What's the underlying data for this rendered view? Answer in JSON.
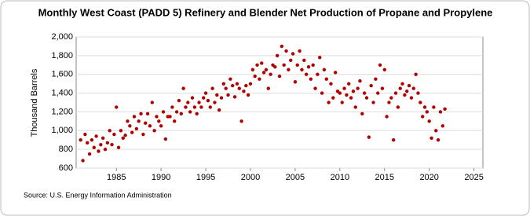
{
  "chart_data": {
    "type": "scatter",
    "title": "Monthly West Coast (PADD 5) Refinery and Blender Net Production of Propane and Propylene",
    "y_label": "Thousand Barrels",
    "source": "Source: U.S. Energy Information Administration",
    "color": "#b00000",
    "grid": true,
    "xlim": [
      1980.5,
      2026
    ],
    "xticks": [
      1985,
      1990,
      1995,
      2000,
      2005,
      2010,
      2015,
      2020,
      2025
    ],
    "ylim": [
      600,
      2000
    ],
    "yticks": [
      {
        "value": 600,
        "label": "600"
      },
      {
        "value": 800,
        "label": "800"
      },
      {
        "value": 1000,
        "label": "1,000"
      },
      {
        "value": 1200,
        "label": "1,200"
      },
      {
        "value": 1400,
        "label": "1,400"
      },
      {
        "value": 1600,
        "label": "1,600"
      },
      {
        "value": 1800,
        "label": "1,800"
      },
      {
        "value": 2000,
        "label": "2,000"
      }
    ],
    "x": [
      1981,
      1981.25,
      1981.5,
      1981.75,
      1982,
      1982.25,
      1982.5,
      1982.75,
      1983,
      1983.25,
      1983.5,
      1983.75,
      1984,
      1984.25,
      1984.5,
      1984.75,
      1985,
      1985.25,
      1985.5,
      1985.75,
      1986,
      1986.25,
      1986.5,
      1986.75,
      1987,
      1987.25,
      1987.5,
      1987.75,
      1988,
      1988.25,
      1988.5,
      1988.75,
      1989,
      1989.25,
      1989.5,
      1989.75,
      1990,
      1990.25,
      1990.5,
      1990.75,
      1991,
      1991.25,
      1991.5,
      1991.75,
      1992,
      1992.25,
      1992.5,
      1992.75,
      1993,
      1993.25,
      1993.5,
      1993.75,
      1994,
      1994.25,
      1994.5,
      1994.75,
      1995,
      1995.25,
      1995.5,
      1995.75,
      1996,
      1996.25,
      1996.5,
      1996.75,
      1997,
      1997.25,
      1997.5,
      1997.75,
      1998,
      1998.25,
      1998.5,
      1998.75,
      1999,
      1999.25,
      1999.5,
      1999.75,
      2000,
      2000.25,
      2000.5,
      2000.75,
      2001,
      2001.25,
      2001.5,
      2001.75,
      2002,
      2002.25,
      2002.5,
      2002.75,
      2003,
      2003.25,
      2003.5,
      2003.75,
      2004,
      2004.25,
      2004.5,
      2004.75,
      2005,
      2005.25,
      2005.5,
      2005.75,
      2006,
      2006.25,
      2006.5,
      2006.75,
      2007,
      2007.25,
      2007.5,
      2007.75,
      2008,
      2008.25,
      2008.5,
      2008.75,
      2009,
      2009.25,
      2009.5,
      2009.75,
      2010,
      2010.25,
      2010.5,
      2010.75,
      2011,
      2011.25,
      2011.5,
      2011.75,
      2012,
      2012.25,
      2012.5,
      2012.75,
      2013,
      2013.25,
      2013.5,
      2013.75,
      2014,
      2014.25,
      2014.5,
      2014.75,
      2015,
      2015.25,
      2015.5,
      2015.75,
      2016,
      2016.25,
      2016.5,
      2016.75,
      2017,
      2017.25,
      2017.5,
      2017.75,
      2018,
      2018.25,
      2018.5,
      2018.75,
      2019,
      2019.25,
      2019.5,
      2019.75,
      2020,
      2020.25,
      2020.5,
      2020.75,
      2021,
      2021.25,
      2021.5,
      2021.75
    ],
    "values": [
      900,
      680,
      960,
      870,
      750,
      900,
      820,
      940,
      780,
      850,
      920,
      800,
      870,
      1000,
      850,
      960,
      1250,
      820,
      1000,
      920,
      950,
      1100,
      1050,
      980,
      1150,
      1020,
      1100,
      1180,
      960,
      1080,
      1180,
      1050,
      1300,
      1000,
      1150,
      1100,
      1050,
      1200,
      910,
      1150,
      1150,
      1250,
      1100,
      1200,
      1320,
      1180,
      1450,
      1250,
      1300,
      1200,
      1350,
      1250,
      1180,
      1300,
      1250,
      1350,
      1400,
      1320,
      1250,
      1450,
      1300,
      1380,
      1220,
      1350,
      1500,
      1450,
      1380,
      1550,
      1480,
      1360,
      1500,
      1450,
      1100,
      1420,
      1480,
      1380,
      1500,
      1650,
      1580,
      1700,
      1550,
      1720,
      1620,
      1650,
      1450,
      1600,
      1700,
      1680,
      1800,
      1580,
      1900,
      1700,
      1850,
      1650,
      1750,
      1820,
      1520,
      1700,
      1850,
      1650,
      1750,
      1600,
      1680,
      1550,
      1700,
      1450,
      1600,
      1780,
      1400,
      1650,
      1550,
      1300,
      1500,
      1350,
      1620,
      1420,
      1400,
      1300,
      1450,
      1380,
      1500,
      1350,
      1420,
      1250,
      1450,
      1530,
      1180,
      1400,
      1350,
      930,
      1480,
      1300,
      1550,
      1400,
      1700,
      1450,
      1650,
      1150,
      1300,
      1350,
      900,
      1400,
      1250,
      1450,
      1500,
      1380,
      1420,
      1480,
      1350,
      1450,
      1600,
      1400,
      1300,
      1150,
      1250,
      1200,
      1100,
      920,
      1250,
      1000,
      900,
      1200,
      1050,
      1230
    ]
  }
}
